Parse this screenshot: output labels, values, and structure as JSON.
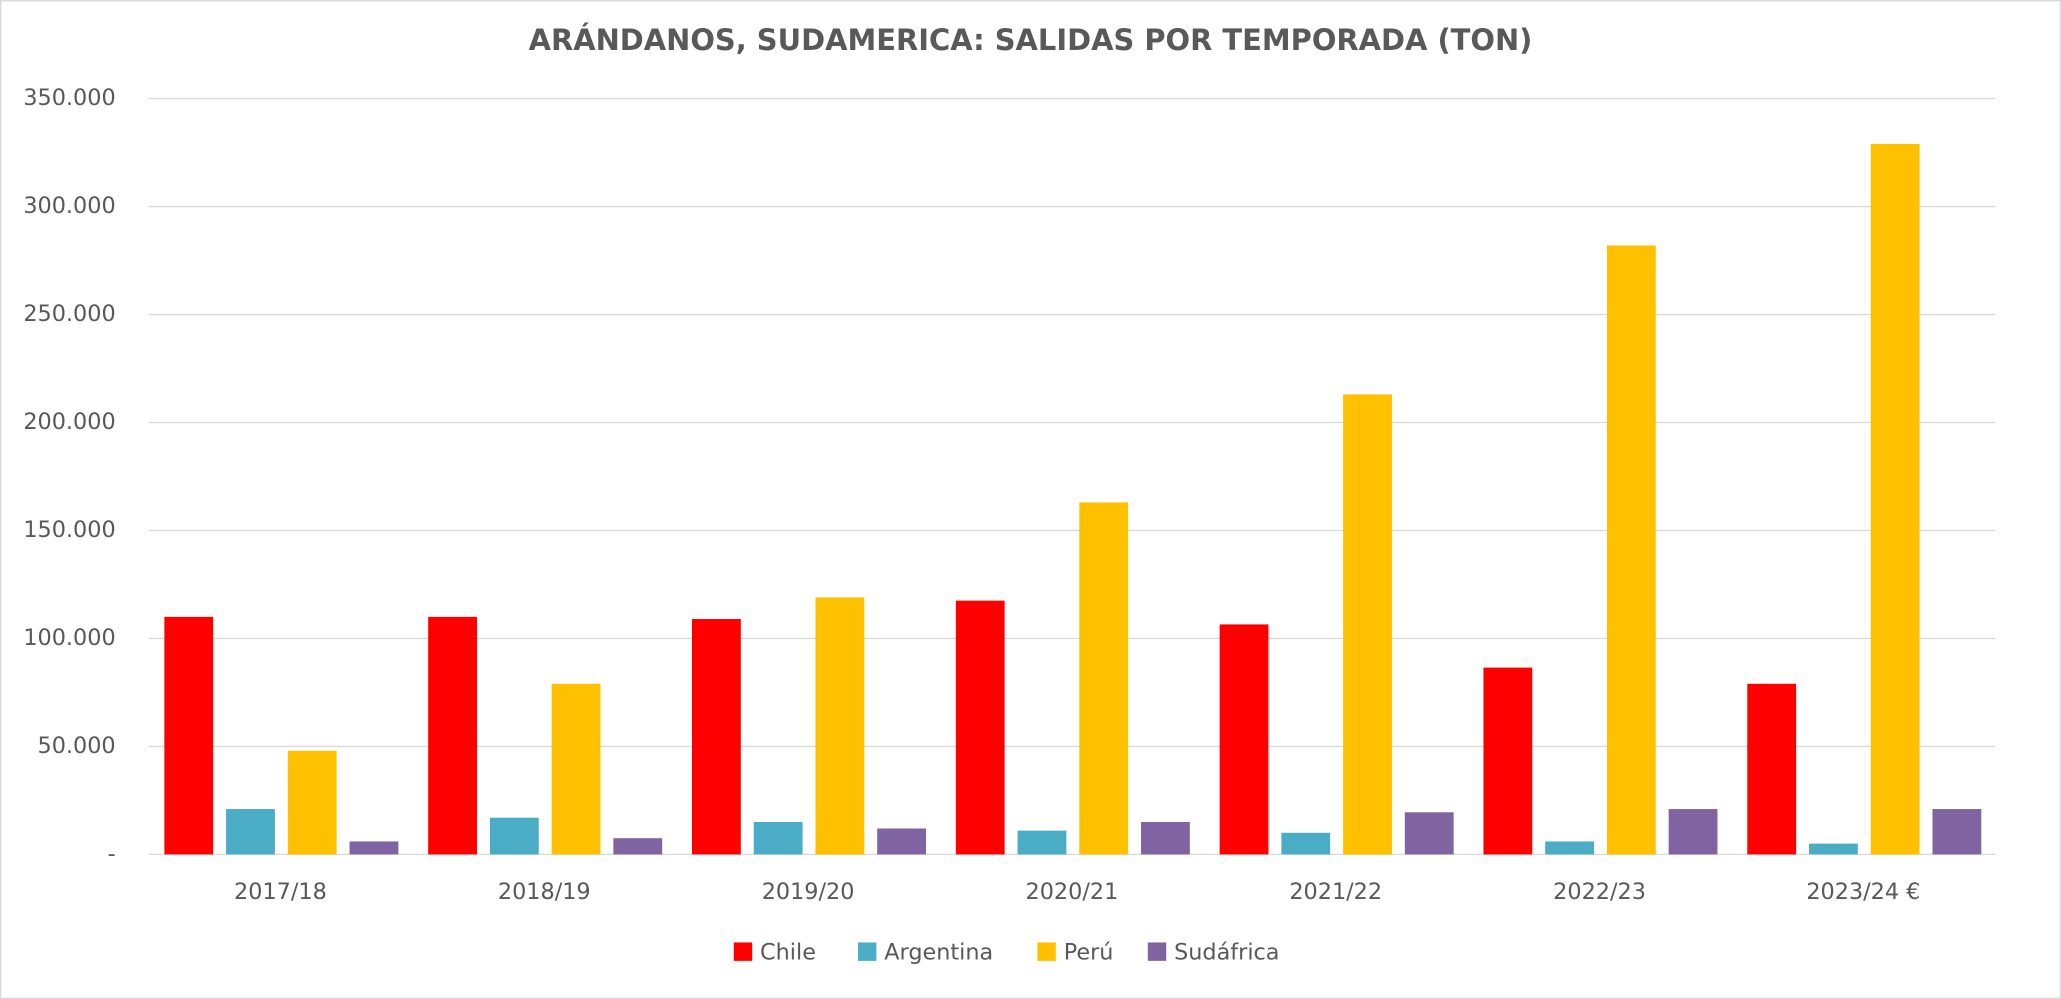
{
  "chart_data": {
    "type": "bar",
    "title": "ARÁNDANOS, SUDAMERICA: SALIDAS POR TEMPORADA (TON)",
    "categories": [
      "2017/18",
      "2018/19",
      "2019/20",
      "2020/21",
      "2021/22",
      "2022/23",
      "2023/24 €"
    ],
    "series": [
      {
        "name": "Chile",
        "color": "#ff0000",
        "values": [
          110000,
          110000,
          109000,
          117500,
          106500,
          86500,
          79000
        ]
      },
      {
        "name": "Argentina",
        "color": "#4bacc6",
        "values": [
          21000,
          17000,
          15000,
          11000,
          10000,
          6000,
          5000
        ]
      },
      {
        "name": "Perú",
        "color": "#ffc000",
        "values": [
          48000,
          79000,
          119000,
          163000,
          213000,
          282000,
          329000
        ]
      },
      {
        "name": "Sudáfrica",
        "color": "#8064a2",
        "values": [
          6000,
          7500,
          12000,
          15000,
          19500,
          21000,
          21000
        ]
      }
    ],
    "ylim": [
      0,
      350000
    ],
    "yticks": [
      {
        "value": 0,
        "label": "-"
      },
      {
        "value": 50000,
        "label": "50.000"
      },
      {
        "value": 100000,
        "label": "100.000"
      },
      {
        "value": 150000,
        "label": "150.000"
      },
      {
        "value": 200000,
        "label": "200.000"
      },
      {
        "value": 250000,
        "label": "250.000"
      },
      {
        "value": 300000,
        "label": "300.000"
      },
      {
        "value": 350000,
        "label": "350.000"
      }
    ],
    "grid": true,
    "legend": "bottom"
  }
}
